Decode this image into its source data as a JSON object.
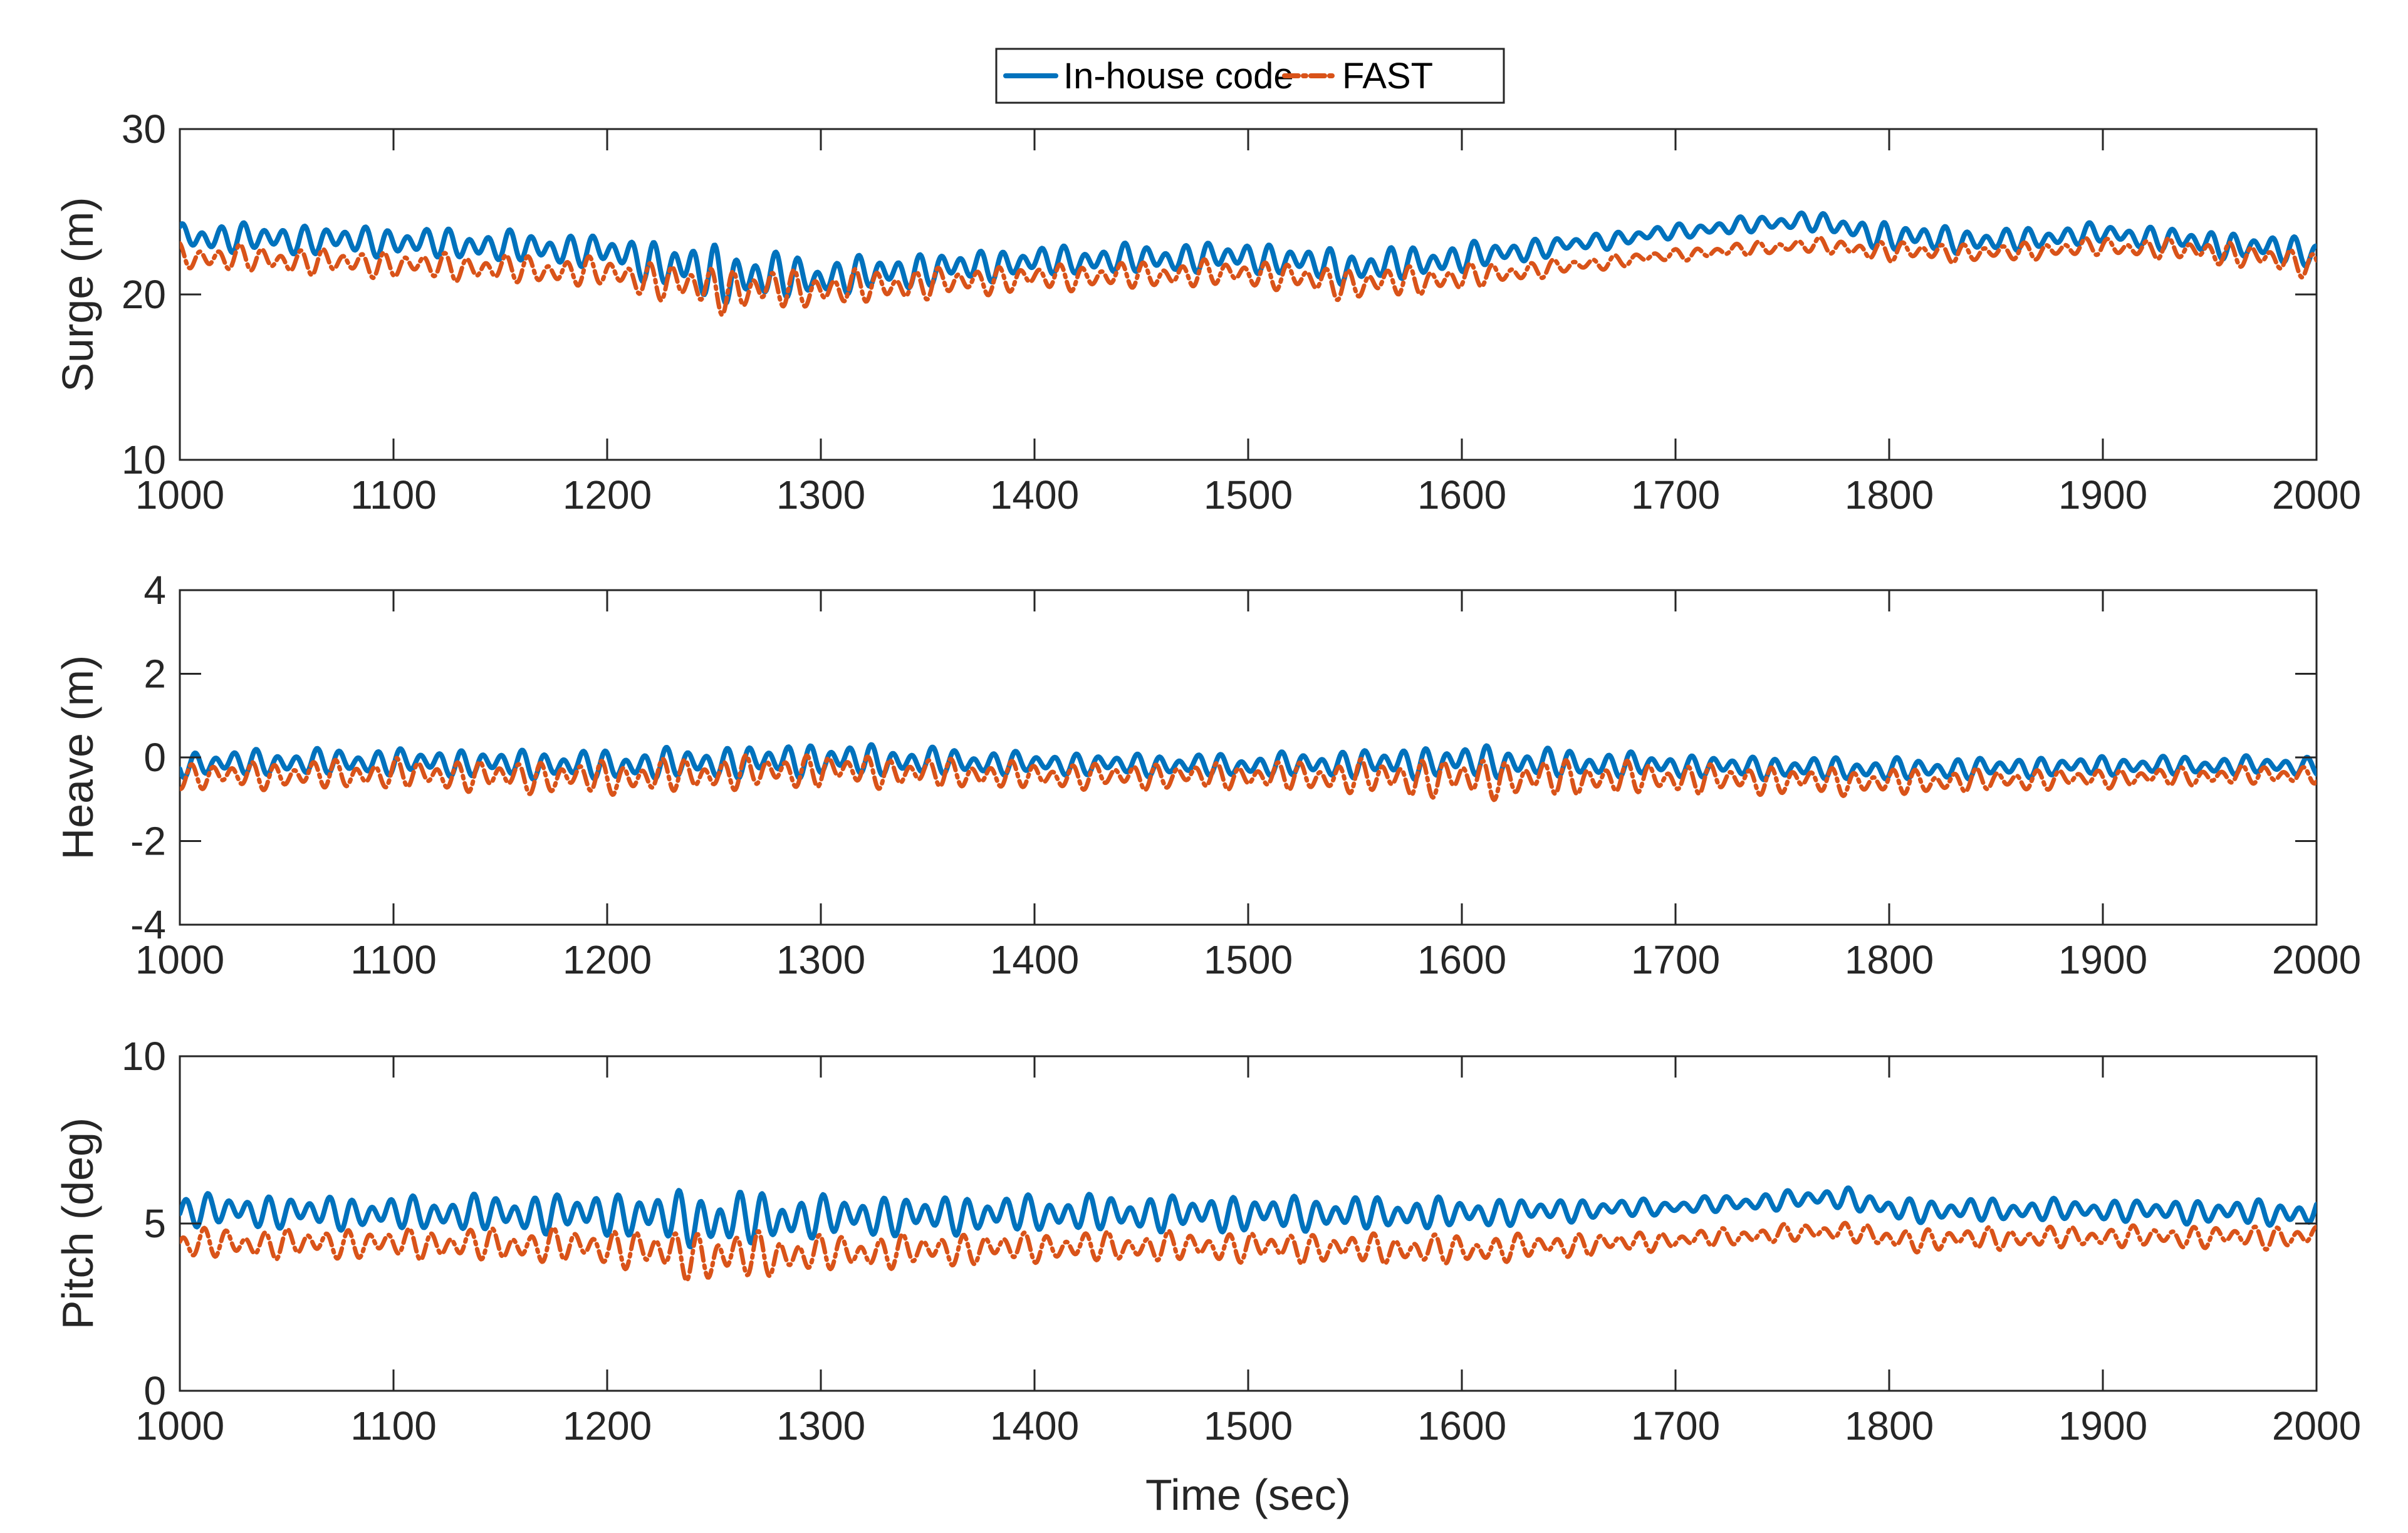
{
  "legend": {
    "entries": [
      {
        "label": "In-house code",
        "color": "#0072BD",
        "style": "solid"
      },
      {
        "label": "FAST",
        "color": "#D95319",
        "style": "dashdot"
      }
    ]
  },
  "chart_data": [
    {
      "type": "line",
      "id": "surge",
      "title": "",
      "xlabel": "",
      "ylabel": "Surge (m)",
      "xlim": [
        1000,
        2000
      ],
      "ylim": [
        10,
        30
      ],
      "xticks": [
        1000,
        1100,
        1200,
        1300,
        1400,
        1500,
        1600,
        1700,
        1800,
        1900,
        2000
      ],
      "yticks": [
        10,
        20,
        30
      ],
      "grid": false,
      "series": [
        {
          "name": "In-house code",
          "color": "#0072BD",
          "x": [
            1000,
            1100,
            1200,
            1250,
            1300,
            1400,
            1500,
            1550,
            1600,
            1650,
            1700,
            1760,
            1800,
            1850,
            1900,
            1950,
            2000
          ],
          "mean": [
            23.5,
            23.2,
            22.6,
            21.2,
            21.0,
            22.0,
            22.3,
            21.6,
            22.2,
            23.0,
            23.8,
            24.5,
            23.5,
            23.2,
            23.7,
            23.1,
            22.5
          ],
          "amplitude": [
            1.0,
            1.0,
            1.1,
            2.0,
            1.3,
            1.0,
            1.0,
            1.2,
            1.0,
            0.6,
            0.5,
            0.6,
            1.0,
            0.8,
            0.7,
            0.9,
            1.0
          ]
        },
        {
          "name": "FAST",
          "color": "#D95319",
          "x": [
            1000,
            1100,
            1200,
            1250,
            1300,
            1400,
            1500,
            1550,
            1600,
            1650,
            1700,
            1760,
            1800,
            1850,
            1900,
            1950,
            2000
          ],
          "mean": [
            22.3,
            21.8,
            21.3,
            20.3,
            20.3,
            21.0,
            21.3,
            20.6,
            21.0,
            21.7,
            22.4,
            23.0,
            22.6,
            22.5,
            22.9,
            22.6,
            21.8
          ],
          "amplitude": [
            0.9,
            0.9,
            1.0,
            1.6,
            1.2,
            0.9,
            0.9,
            1.1,
            0.9,
            0.5,
            0.4,
            0.5,
            0.7,
            0.6,
            0.6,
            0.8,
            0.9
          ]
        }
      ]
    },
    {
      "type": "line",
      "id": "heave",
      "title": "",
      "xlabel": "",
      "ylabel": "Heave (m)",
      "xlim": [
        1000,
        2000
      ],
      "ylim": [
        -4,
        4
      ],
      "xticks": [
        1000,
        1100,
        1200,
        1300,
        1400,
        1500,
        1600,
        1700,
        1800,
        1900,
        2000
      ],
      "yticks": [
        -4,
        -2,
        0,
        2,
        4
      ],
      "grid": false,
      "series": [
        {
          "name": "In-house code",
          "color": "#0072BD",
          "x": [
            1000,
            1100,
            1200,
            1300,
            1400,
            1500,
            1600,
            1700,
            1800,
            1900,
            2000
          ],
          "mean": [
            -0.15,
            -0.1,
            -0.2,
            -0.05,
            -0.15,
            -0.2,
            -0.1,
            -0.2,
            -0.3,
            -0.2,
            -0.2
          ],
          "amplitude": [
            0.35,
            0.35,
            0.4,
            0.45,
            0.3,
            0.3,
            0.45,
            0.3,
            0.3,
            0.25,
            0.25
          ]
        },
        {
          "name": "FAST",
          "color": "#D95319",
          "x": [
            1000,
            1100,
            1200,
            1300,
            1400,
            1500,
            1600,
            1700,
            1800,
            1900,
            2000
          ],
          "mean": [
            -0.45,
            -0.4,
            -0.5,
            -0.3,
            -0.45,
            -0.45,
            -0.5,
            -0.5,
            -0.6,
            -0.5,
            -0.4
          ],
          "amplitude": [
            0.35,
            0.4,
            0.45,
            0.45,
            0.35,
            0.35,
            0.55,
            0.4,
            0.35,
            0.25,
            0.25
          ]
        }
      ]
    },
    {
      "type": "line",
      "id": "pitch",
      "title": "",
      "xlabel": "Time (sec)",
      "ylabel": "Pitch (deg)",
      "xlim": [
        1000,
        2000
      ],
      "ylim": [
        0,
        10
      ],
      "xticks": [
        1000,
        1100,
        1200,
        1300,
        1400,
        1500,
        1600,
        1700,
        1800,
        1900,
        2000
      ],
      "yticks": [
        0,
        5,
        10
      ],
      "grid": false,
      "series": [
        {
          "name": "In-house code",
          "color": "#0072BD",
          "x": [
            1000,
            1100,
            1200,
            1250,
            1300,
            1400,
            1500,
            1600,
            1700,
            1780,
            1800,
            1900,
            2000
          ],
          "mean": [
            5.4,
            5.3,
            5.3,
            5.1,
            5.2,
            5.3,
            5.3,
            5.3,
            5.5,
            5.8,
            5.4,
            5.4,
            5.3
          ],
          "amplitude": [
            0.55,
            0.55,
            0.7,
            1.0,
            0.7,
            0.6,
            0.6,
            0.5,
            0.25,
            0.35,
            0.4,
            0.35,
            0.45
          ]
        },
        {
          "name": "FAST",
          "color": "#D95319",
          "x": [
            1000,
            1100,
            1200,
            1250,
            1300,
            1400,
            1500,
            1600,
            1700,
            1780,
            1800,
            1900,
            2000
          ],
          "mean": [
            4.4,
            4.4,
            4.3,
            4.0,
            4.1,
            4.3,
            4.3,
            4.2,
            4.5,
            4.8,
            4.5,
            4.6,
            4.6
          ],
          "amplitude": [
            0.5,
            0.5,
            0.6,
            0.9,
            0.6,
            0.5,
            0.5,
            0.5,
            0.3,
            0.3,
            0.4,
            0.35,
            0.4
          ]
        }
      ]
    }
  ]
}
